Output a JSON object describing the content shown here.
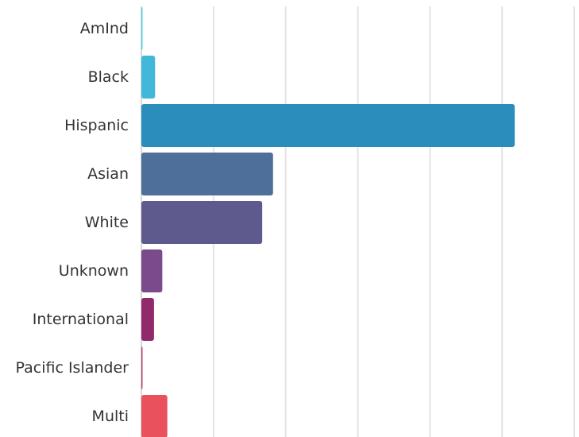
{
  "chart_data": {
    "type": "bar",
    "orientation": "horizontal",
    "categories": [
      "AmInd",
      "Black",
      "Hispanic",
      "Asian",
      "White",
      "Unknown",
      "International",
      "Pacific Islander",
      "Multi"
    ],
    "values": [
      0.2,
      3.8,
      103.5,
      36.5,
      33.5,
      5.8,
      3.5,
      0.3,
      7.2
    ],
    "colors": [
      "#4ed0e3",
      "#41b8d9",
      "#2b8dbb",
      "#4d6f9a",
      "#5e5a8d",
      "#7a4a8c",
      "#902a6b",
      "#b8436f",
      "#e9525d"
    ],
    "xlim": [
      0,
      120
    ],
    "x_gridlines": [
      20,
      40,
      60,
      80,
      100,
      120
    ],
    "grid": true,
    "legend": "none",
    "show_x_tick_labels": false
  }
}
